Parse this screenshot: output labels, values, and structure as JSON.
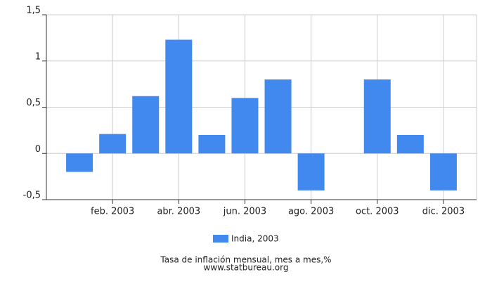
{
  "chart_data": {
    "type": "bar",
    "title": "Tasa de inflación mensual, mes a mes,%",
    "source": "www.statbureau.org",
    "categories": [
      null,
      "feb. 2003",
      null,
      "abr. 2003",
      null,
      "jun. 2003",
      null,
      "ago. 2003",
      null,
      "oct. 2003",
      null,
      "dic. 2003"
    ],
    "series": [
      {
        "name": "India, 2003",
        "color": "#4189ee",
        "values": [
          -0.2,
          0.21,
          0.62,
          1.23,
          0.2,
          0.6,
          0.8,
          -0.4,
          0,
          0.8,
          0.2,
          -0.4
        ]
      }
    ],
    "ylim": [
      -0.5,
      1.5
    ],
    "yticks": [
      {
        "value": -0.5,
        "label": "-0,5"
      },
      0,
      {
        "value": 0.5,
        "label": "0,5"
      },
      1,
      {
        "value": 1.5,
        "label": "1,5"
      }
    ],
    "grid": true
  }
}
